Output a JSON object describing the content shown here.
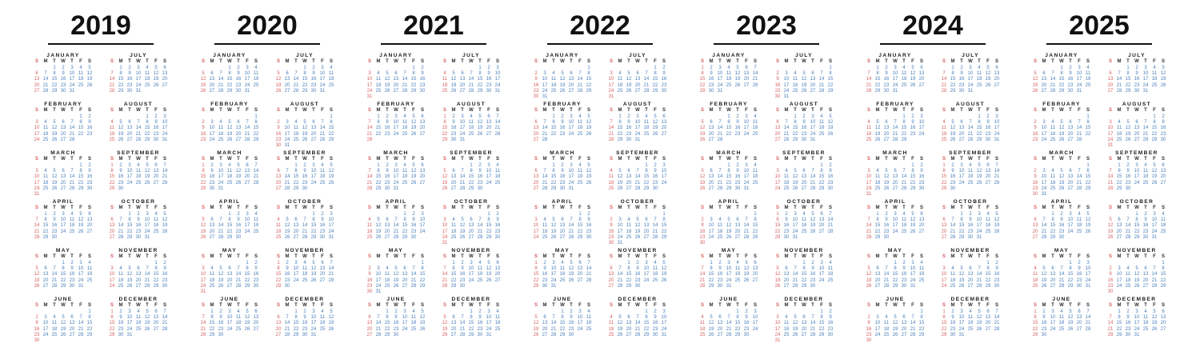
{
  "weekdays": [
    "S",
    "M",
    "T",
    "W",
    "T",
    "F",
    "S"
  ],
  "colors": {
    "year_title": "#111111",
    "month_name": "#1a1a1a",
    "weekday": "#2e2e2e",
    "date": "#4a7fba",
    "sunday": "#d96161",
    "background": "#ffffff"
  },
  "years": [
    {
      "label": "2019",
      "months": [
        {
          "name": "JANUARY",
          "first_weekday": 2,
          "days": 31
        },
        {
          "name": "FEBRUARY",
          "first_weekday": 5,
          "days": 28
        },
        {
          "name": "MARCH",
          "first_weekday": 5,
          "days": 31
        },
        {
          "name": "APRIL",
          "first_weekday": 1,
          "days": 30
        },
        {
          "name": "MAY",
          "first_weekday": 3,
          "days": 31
        },
        {
          "name": "JUNE",
          "first_weekday": 6,
          "days": 30
        },
        {
          "name": "JULY",
          "first_weekday": 1,
          "days": 31
        },
        {
          "name": "AUGUST",
          "first_weekday": 4,
          "days": 31
        },
        {
          "name": "SEPTEMBER",
          "first_weekday": 0,
          "days": 30
        },
        {
          "name": "OCTOBER",
          "first_weekday": 2,
          "days": 31
        },
        {
          "name": "NOVEMBER",
          "first_weekday": 5,
          "days": 30
        },
        {
          "name": "DECEMBER",
          "first_weekday": 0,
          "days": 31
        }
      ]
    },
    {
      "label": "2020",
      "months": [
        {
          "name": "JANUARY",
          "first_weekday": 3,
          "days": 31
        },
        {
          "name": "FEBRUARY",
          "first_weekday": 6,
          "days": 29
        },
        {
          "name": "MARCH",
          "first_weekday": 0,
          "days": 31
        },
        {
          "name": "APRIL",
          "first_weekday": 3,
          "days": 30
        },
        {
          "name": "MAY",
          "first_weekday": 5,
          "days": 31
        },
        {
          "name": "JUNE",
          "first_weekday": 1,
          "days": 30
        },
        {
          "name": "JULY",
          "first_weekday": 3,
          "days": 31
        },
        {
          "name": "AUGUST",
          "first_weekday": 6,
          "days": 31
        },
        {
          "name": "SEPTEMBER",
          "first_weekday": 2,
          "days": 30
        },
        {
          "name": "OCTOBER",
          "first_weekday": 4,
          "days": 31
        },
        {
          "name": "NOVEMBER",
          "first_weekday": 0,
          "days": 30
        },
        {
          "name": "DECEMBER",
          "first_weekday": 2,
          "days": 31
        }
      ]
    },
    {
      "label": "2021",
      "months": [
        {
          "name": "JANUARY",
          "first_weekday": 5,
          "days": 31
        },
        {
          "name": "FEBRUARY",
          "first_weekday": 1,
          "days": 28
        },
        {
          "name": "MARCH",
          "first_weekday": 1,
          "days": 31
        },
        {
          "name": "APRIL",
          "first_weekday": 4,
          "days": 30
        },
        {
          "name": "MAY",
          "first_weekday": 6,
          "days": 31
        },
        {
          "name": "JUNE",
          "first_weekday": 2,
          "days": 30
        },
        {
          "name": "JULY",
          "first_weekday": 4,
          "days": 31
        },
        {
          "name": "AUGUST",
          "first_weekday": 0,
          "days": 31
        },
        {
          "name": "SEPTEMBER",
          "first_weekday": 3,
          "days": 30
        },
        {
          "name": "OCTOBER",
          "first_weekday": 5,
          "days": 31
        },
        {
          "name": "NOVEMBER",
          "first_weekday": 1,
          "days": 30
        },
        {
          "name": "DECEMBER",
          "first_weekday": 3,
          "days": 31
        }
      ]
    },
    {
      "label": "2022",
      "months": [
        {
          "name": "JANUARY",
          "first_weekday": 6,
          "days": 31
        },
        {
          "name": "FEBRUARY",
          "first_weekday": 2,
          "days": 28
        },
        {
          "name": "MARCH",
          "first_weekday": 2,
          "days": 31
        },
        {
          "name": "APRIL",
          "first_weekday": 5,
          "days": 30
        },
        {
          "name": "MAY",
          "first_weekday": 0,
          "days": 31
        },
        {
          "name": "JUNE",
          "first_weekday": 3,
          "days": 30
        },
        {
          "name": "JULY",
          "first_weekday": 5,
          "days": 31
        },
        {
          "name": "AUGUST",
          "first_weekday": 1,
          "days": 31
        },
        {
          "name": "SEPTEMBER",
          "first_weekday": 4,
          "days": 30
        },
        {
          "name": "OCTOBER",
          "first_weekday": 6,
          "days": 31
        },
        {
          "name": "NOVEMBER",
          "first_weekday": 2,
          "days": 30
        },
        {
          "name": "DECEMBER",
          "first_weekday": 4,
          "days": 31
        }
      ]
    },
    {
      "label": "2023",
      "months": [
        {
          "name": "JANUARY",
          "first_weekday": 0,
          "days": 31
        },
        {
          "name": "FEBRUARY",
          "first_weekday": 3,
          "days": 28
        },
        {
          "name": "MARCH",
          "first_weekday": 3,
          "days": 31
        },
        {
          "name": "APRIL",
          "first_weekday": 6,
          "days": 30
        },
        {
          "name": "MAY",
          "first_weekday": 1,
          "days": 31
        },
        {
          "name": "JUNE",
          "first_weekday": 4,
          "days": 30
        },
        {
          "name": "JULY",
          "first_weekday": 6,
          "days": 31
        },
        {
          "name": "AUGUST",
          "first_weekday": 2,
          "days": 31
        },
        {
          "name": "SEPTEMBER",
          "first_weekday": 5,
          "days": 30
        },
        {
          "name": "OCTOBER",
          "first_weekday": 0,
          "days": 31
        },
        {
          "name": "NOVEMBER",
          "first_weekday": 3,
          "days": 30
        },
        {
          "name": "DECEMBER",
          "first_weekday": 5,
          "days": 31
        }
      ]
    },
    {
      "label": "2024",
      "months": [
        {
          "name": "JANUARY",
          "first_weekday": 1,
          "days": 31
        },
        {
          "name": "FEBRUARY",
          "first_weekday": 4,
          "days": 29
        },
        {
          "name": "MARCH",
          "first_weekday": 5,
          "days": 31
        },
        {
          "name": "APRIL",
          "first_weekday": 1,
          "days": 30
        },
        {
          "name": "MAY",
          "first_weekday": 3,
          "days": 31
        },
        {
          "name": "JUNE",
          "first_weekday": 6,
          "days": 30
        },
        {
          "name": "JULY",
          "first_weekday": 1,
          "days": 31
        },
        {
          "name": "AUGUST",
          "first_weekday": 4,
          "days": 31
        },
        {
          "name": "SEPTEMBER",
          "first_weekday": 0,
          "days": 30
        },
        {
          "name": "OCTOBER",
          "first_weekday": 2,
          "days": 31
        },
        {
          "name": "NOVEMBER",
          "first_weekday": 5,
          "days": 30
        },
        {
          "name": "DECEMBER",
          "first_weekday": 0,
          "days": 31
        }
      ]
    },
    {
      "label": "2025",
      "months": [
        {
          "name": "JANUARY",
          "first_weekday": 3,
          "days": 31
        },
        {
          "name": "FEBRUARY",
          "first_weekday": 6,
          "days": 28
        },
        {
          "name": "MARCH",
          "first_weekday": 6,
          "days": 31
        },
        {
          "name": "APRIL",
          "first_weekday": 2,
          "days": 30
        },
        {
          "name": "MAY",
          "first_weekday": 4,
          "days": 31
        },
        {
          "name": "JUNE",
          "first_weekday": 0,
          "days": 30
        },
        {
          "name": "JULY",
          "first_weekday": 2,
          "days": 31
        },
        {
          "name": "AUGUST",
          "first_weekday": 5,
          "days": 31
        },
        {
          "name": "SEPTEMBER",
          "first_weekday": 1,
          "days": 30
        },
        {
          "name": "OCTOBER",
          "first_weekday": 3,
          "days": 31
        },
        {
          "name": "NOVEMBER",
          "first_weekday": 6,
          "days": 30
        },
        {
          "name": "DECEMBER",
          "first_weekday": 1,
          "days": 31
        }
      ]
    }
  ]
}
